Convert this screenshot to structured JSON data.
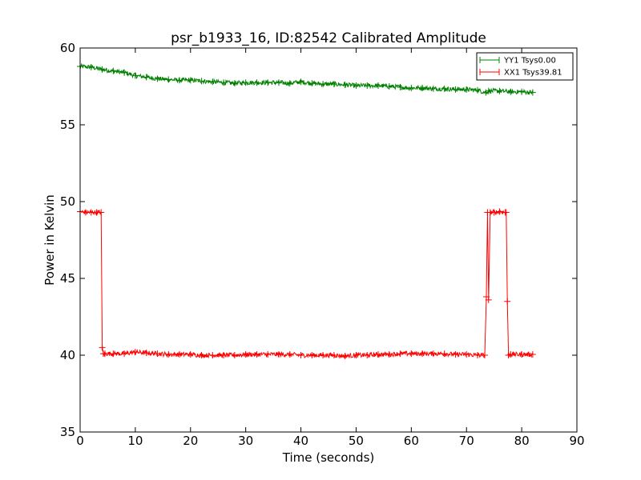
{
  "chart_data": {
    "type": "line",
    "title": "psr_b1933_16, ID:82542 Calibrated Amplitude",
    "xlabel": "Time (seconds)",
    "ylabel": "Power in Kelvin",
    "xlim": [
      0,
      90
    ],
    "ylim": [
      35,
      60
    ],
    "xticks": [
      0,
      10,
      20,
      30,
      40,
      50,
      60,
      70,
      80,
      90
    ],
    "yticks": [
      35,
      40,
      45,
      50,
      55,
      60
    ],
    "xtick_labels": [
      "0",
      "10",
      "20",
      "30",
      "40",
      "50",
      "60",
      "70",
      "80",
      "90"
    ],
    "ytick_labels": [
      "35",
      "40",
      "45",
      "50",
      "55",
      "60"
    ],
    "grid": false,
    "legend_position": "top-right",
    "marker": "+",
    "series": [
      {
        "name": "YY1 Tsys0.00",
        "color": "#008000",
        "x": [
          0,
          2,
          4,
          6,
          8,
          10,
          12,
          14,
          16,
          18,
          20,
          22,
          24,
          26,
          28,
          30,
          32,
          34,
          36,
          38,
          40,
          42,
          44,
          46,
          48,
          50,
          52,
          54,
          56,
          58,
          60,
          62,
          64,
          66,
          68,
          70,
          72,
          73.5,
          74,
          76,
          78,
          80,
          82
        ],
        "y": [
          58.8,
          58.75,
          58.6,
          58.5,
          58.4,
          58.2,
          58.1,
          58.0,
          57.95,
          57.9,
          57.9,
          57.85,
          57.8,
          57.75,
          57.7,
          57.75,
          57.75,
          57.75,
          57.75,
          57.7,
          57.8,
          57.7,
          57.65,
          57.65,
          57.6,
          57.55,
          57.55,
          57.55,
          57.5,
          57.45,
          57.4,
          57.4,
          57.35,
          57.35,
          57.3,
          57.3,
          57.25,
          57.1,
          57.2,
          57.2,
          57.15,
          57.15,
          57.1
        ]
      },
      {
        "name": "XX1 Tsys39.81",
        "color": "#ff0000",
        "x": [
          0,
          1,
          2,
          3,
          3.8,
          4.0,
          4.2,
          4.5,
          6,
          8,
          10,
          12,
          14,
          16,
          18,
          20,
          22,
          24,
          26,
          28,
          30,
          32,
          34,
          36,
          38,
          40,
          42,
          44,
          46,
          48,
          50,
          52,
          54,
          56,
          58,
          60,
          62,
          64,
          66,
          68,
          70,
          72,
          73.3,
          73.6,
          73.8,
          74.0,
          74.3,
          75,
          76,
          77,
          77.2,
          77.4,
          77.6,
          78,
          80,
          82
        ],
        "y": [
          49.35,
          49.3,
          49.3,
          49.3,
          49.3,
          40.5,
          40.1,
          40.1,
          40.1,
          40.1,
          40.2,
          40.15,
          40.1,
          40.05,
          40.05,
          40.05,
          40.0,
          40.0,
          40.0,
          40.0,
          40.05,
          40.05,
          40.05,
          40.05,
          40.05,
          40.0,
          40.0,
          40.0,
          40.0,
          39.95,
          40.0,
          40.0,
          40.05,
          40.05,
          40.1,
          40.1,
          40.1,
          40.1,
          40.1,
          40.05,
          40.05,
          40.0,
          40.0,
          43.8,
          49.3,
          43.6,
          49.3,
          49.3,
          49.35,
          49.3,
          49.3,
          43.5,
          40.0,
          40.05,
          40.05,
          40.05
        ]
      }
    ]
  }
}
